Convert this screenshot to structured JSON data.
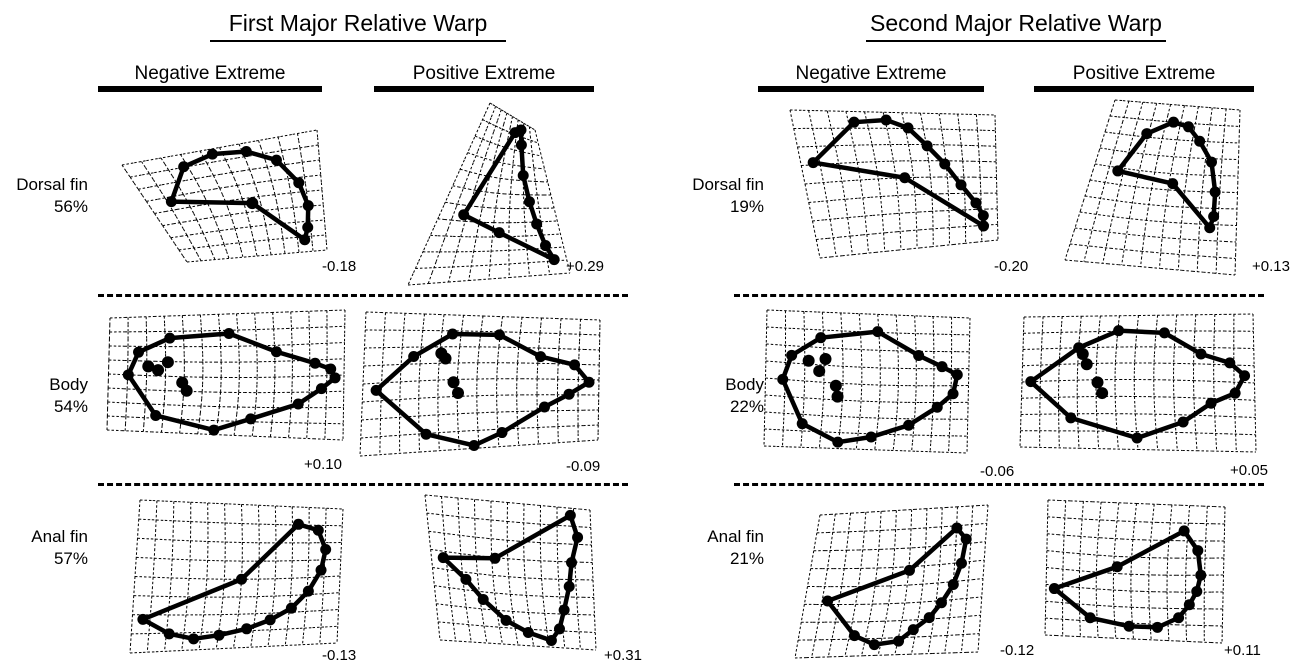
{
  "panels": [
    {
      "title": "First Major Relative Warp",
      "negative_label": "Negative Extreme",
      "positive_label": "Positive Extreme",
      "rows": [
        {
          "name": "Dorsal fin",
          "percent": "56%",
          "negative_score": "-0.18",
          "positive_score": "+0.29"
        },
        {
          "name": "Body",
          "percent": "54%",
          "negative_score": "+0.10",
          "positive_score": "-0.09"
        },
        {
          "name": "Anal fin",
          "percent": "57%",
          "negative_score": "-0.13",
          "positive_score": "+0.31"
        }
      ]
    },
    {
      "title": "Second Major Relative Warp",
      "negative_label": "Negative Extreme",
      "positive_label": "Positive Extreme",
      "rows": [
        {
          "name": "Dorsal fin",
          "percent": "19%",
          "negative_score": "-0.20",
          "positive_score": "+0.13"
        },
        {
          "name": "Body",
          "percent": "22%",
          "negative_score": "-0.06",
          "positive_score": "+0.05"
        },
        {
          "name": "Anal fin",
          "percent": "21%",
          "negative_score": "-0.12",
          "positive_score": "+0.11"
        }
      ]
    }
  ],
  "colors": {
    "ink": "#000000",
    "background": "#ffffff"
  }
}
